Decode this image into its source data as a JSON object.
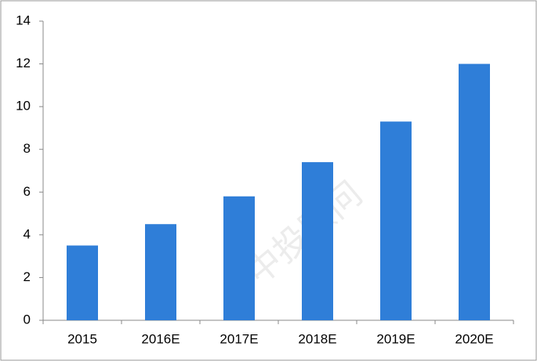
{
  "chart_data": {
    "type": "bar",
    "categories": [
      "2015",
      "2016E",
      "2017E",
      "2018E",
      "2019E",
      "2020E"
    ],
    "values": [
      3.5,
      4.5,
      5.8,
      7.4,
      9.3,
      12.0
    ],
    "color": "#2f7ed8",
    "ylim": [
      0,
      14
    ],
    "yticks": [
      0,
      2,
      4,
      6,
      8,
      10,
      12,
      14
    ],
    "grid": false,
    "watermark": "中投顾问"
  }
}
